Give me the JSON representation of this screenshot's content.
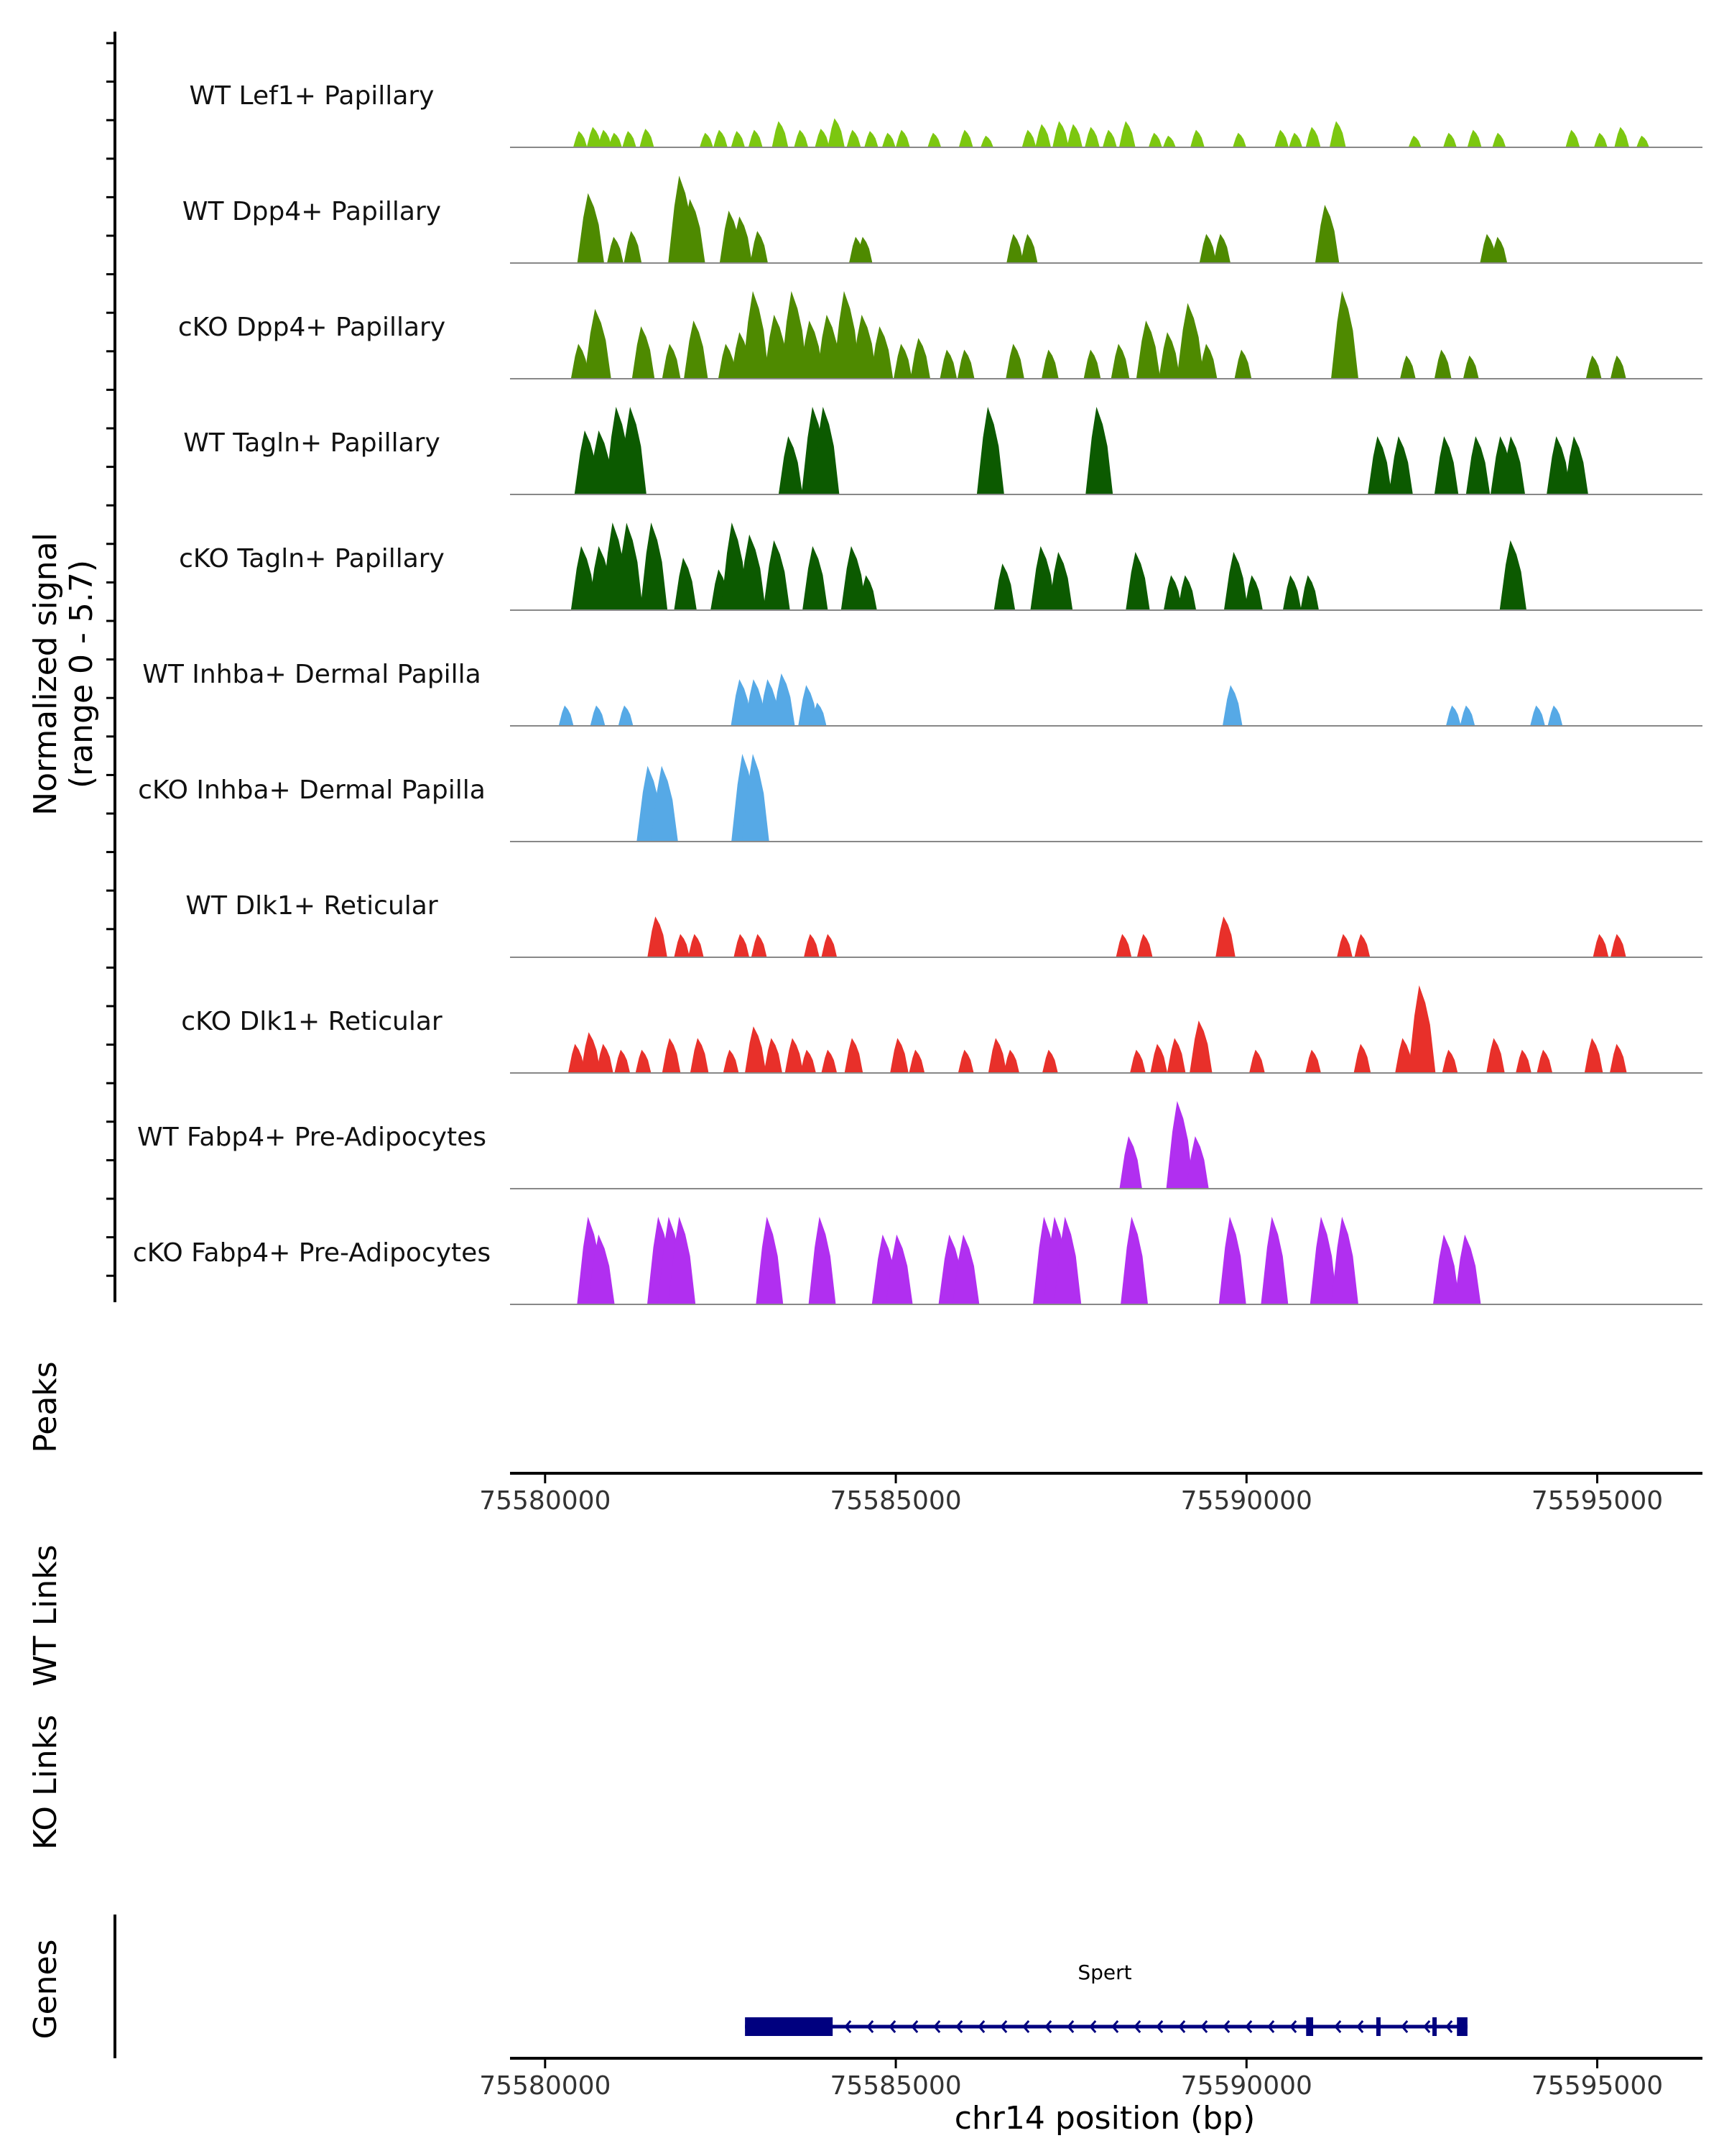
{
  "chart_data": {
    "type": "area",
    "chromosome": "chr14",
    "xlabel": "chr14 position (bp)",
    "xlim": [
      75579500,
      75596500
    ],
    "x_ticks": [
      75580000,
      75585000,
      75590000,
      75595000
    ],
    "x_tick_labels": [
      "75580000",
      "75585000",
      "75590000",
      "75595000"
    ],
    "coverage": {
      "ylabel_line1": "Normalized signal",
      "ylabel_line2": "(range 0 - 5.7)",
      "ylim": [
        0,
        5.7
      ],
      "tracks": [
        {
          "name": "WT Lef1+ Papillary",
          "color": "#7cc710",
          "peaks": [
            [
              75580500,
              0.28
            ],
            [
              75580700,
              0.35
            ],
            [
              75580850,
              0.3
            ],
            [
              75581000,
              0.25
            ],
            [
              75581200,
              0.28
            ],
            [
              75581450,
              0.32
            ],
            [
              75582300,
              0.25
            ],
            [
              75582500,
              0.3
            ],
            [
              75582750,
              0.28
            ],
            [
              75583000,
              0.3
            ],
            [
              75583350,
              0.45
            ],
            [
              75583650,
              0.3
            ],
            [
              75583950,
              0.32
            ],
            [
              75584150,
              0.5
            ],
            [
              75584400,
              0.3
            ],
            [
              75584650,
              0.28
            ],
            [
              75584900,
              0.25
            ],
            [
              75585100,
              0.3
            ],
            [
              75585550,
              0.25
            ],
            [
              75586000,
              0.3
            ],
            [
              75586300,
              0.2
            ],
            [
              75586900,
              0.3
            ],
            [
              75587100,
              0.4
            ],
            [
              75587350,
              0.45
            ],
            [
              75587550,
              0.4
            ],
            [
              75587800,
              0.35
            ],
            [
              75588050,
              0.3
            ],
            [
              75588300,
              0.45
            ],
            [
              75588700,
              0.25
            ],
            [
              75588900,
              0.2
            ],
            [
              75589300,
              0.3
            ],
            [
              75589900,
              0.25
            ],
            [
              75590500,
              0.3
            ],
            [
              75590700,
              0.25
            ],
            [
              75590950,
              0.35
            ],
            [
              75591300,
              0.45
            ],
            [
              75592400,
              0.2
            ],
            [
              75592900,
              0.25
            ],
            [
              75593250,
              0.3
            ],
            [
              75593600,
              0.25
            ],
            [
              75594650,
              0.3
            ],
            [
              75595050,
              0.25
            ],
            [
              75595350,
              0.35
            ],
            [
              75595650,
              0.2
            ]
          ]
        },
        {
          "name": "WT Dpp4+ Papillary",
          "color": "#4e8a00",
          "peaks": [
            [
              75580650,
              1.2
            ],
            [
              75581000,
              0.45
            ],
            [
              75581250,
              0.55
            ],
            [
              75581950,
              1.5
            ],
            [
              75582100,
              1.1
            ],
            [
              75582650,
              0.9
            ],
            [
              75582800,
              0.8
            ],
            [
              75583050,
              0.55
            ],
            [
              75584450,
              0.45
            ],
            [
              75584550,
              0.45
            ],
            [
              75586700,
              0.5
            ],
            [
              75586900,
              0.5
            ],
            [
              75589450,
              0.5
            ],
            [
              75589650,
              0.5
            ],
            [
              75591150,
              1.0
            ],
            [
              75593450,
              0.5
            ],
            [
              75593600,
              0.45
            ]
          ]
        },
        {
          "name": "cKO Dpp4+ Papillary",
          "color": "#4e8a00",
          "peaks": [
            [
              75580500,
              0.6
            ],
            [
              75580750,
              1.2
            ],
            [
              75581400,
              0.9
            ],
            [
              75581800,
              0.6
            ],
            [
              75582150,
              1.0
            ],
            [
              75582600,
              0.6
            ],
            [
              75582800,
              0.8
            ],
            [
              75583000,
              1.9
            ],
            [
              75583300,
              1.1
            ],
            [
              75583550,
              1.6
            ],
            [
              75583800,
              1.0
            ],
            [
              75584050,
              1.1
            ],
            [
              75584300,
              1.7
            ],
            [
              75584550,
              1.1
            ],
            [
              75584800,
              0.9
            ],
            [
              75585100,
              0.6
            ],
            [
              75585350,
              0.7
            ],
            [
              75585750,
              0.5
            ],
            [
              75586000,
              0.5
            ],
            [
              75586700,
              0.6
            ],
            [
              75587200,
              0.5
            ],
            [
              75587800,
              0.5
            ],
            [
              75588200,
              0.6
            ],
            [
              75588600,
              1.0
            ],
            [
              75588900,
              0.8
            ],
            [
              75589200,
              1.3
            ],
            [
              75589450,
              0.6
            ],
            [
              75589950,
              0.5
            ],
            [
              75591400,
              1.6
            ],
            [
              75592300,
              0.4
            ],
            [
              75592800,
              0.5
            ],
            [
              75593200,
              0.4
            ],
            [
              75594950,
              0.4
            ],
            [
              75595300,
              0.4
            ]
          ]
        },
        {
          "name": "WT Tagln+ Papillary",
          "color": "#0c5a00",
          "peaks": [
            [
              75580600,
              1.1
            ],
            [
              75580800,
              1.1
            ],
            [
              75581050,
              2.1
            ],
            [
              75581250,
              2.1
            ],
            [
              75583500,
              1.0
            ],
            [
              75583850,
              1.8
            ],
            [
              75584000,
              1.8
            ],
            [
              75586350,
              2.1
            ],
            [
              75587900,
              2.0
            ],
            [
              75591900,
              1.0
            ],
            [
              75592200,
              1.0
            ],
            [
              75592850,
              1.0
            ],
            [
              75593300,
              1.0
            ],
            [
              75593650,
              1.0
            ],
            [
              75593800,
              1.0
            ],
            [
              75594450,
              1.0
            ],
            [
              75594700,
              1.0
            ]
          ]
        },
        {
          "name": "cKO Tagln+ Papillary",
          "color": "#0c5a00",
          "peaks": [
            [
              75580550,
              1.1
            ],
            [
              75580800,
              1.1
            ],
            [
              75581000,
              2.6
            ],
            [
              75581200,
              1.5
            ],
            [
              75581550,
              2.4
            ],
            [
              75582000,
              0.9
            ],
            [
              75582500,
              0.7
            ],
            [
              75582700,
              1.6
            ],
            [
              75582950,
              1.3
            ],
            [
              75583300,
              1.2
            ],
            [
              75583850,
              1.1
            ],
            [
              75584400,
              1.1
            ],
            [
              75584600,
              0.6
            ],
            [
              75586550,
              0.8
            ],
            [
              75587100,
              1.1
            ],
            [
              75587350,
              1.0
            ],
            [
              75588450,
              1.0
            ],
            [
              75588950,
              0.6
            ],
            [
              75589150,
              0.6
            ],
            [
              75589850,
              1.0
            ],
            [
              75590100,
              0.6
            ],
            [
              75590650,
              0.6
            ],
            [
              75590900,
              0.6
            ],
            [
              75593800,
              1.2
            ]
          ]
        },
        {
          "name": "WT Inhba+ Dermal Papilla",
          "color": "#56a9e6",
          "peaks": [
            [
              75580300,
              0.35
            ],
            [
              75580750,
              0.35
            ],
            [
              75581150,
              0.35
            ],
            [
              75582800,
              0.8
            ],
            [
              75583000,
              0.8
            ],
            [
              75583200,
              0.8
            ],
            [
              75583400,
              0.9
            ],
            [
              75583750,
              0.7
            ],
            [
              75583900,
              0.4
            ],
            [
              75589800,
              0.7
            ],
            [
              75592950,
              0.35
            ],
            [
              75593150,
              0.35
            ],
            [
              75594150,
              0.35
            ],
            [
              75594400,
              0.35
            ]
          ]
        },
        {
          "name": "cKO Inhba+ Dermal Papilla",
          "color": "#56a9e6",
          "peaks": [
            [
              75581500,
              1.3
            ],
            [
              75581700,
              1.3
            ],
            [
              75582850,
              3.9
            ],
            [
              75583000,
              2.1
            ]
          ]
        },
        {
          "name": "WT Dlk1+ Reticular",
          "color": "#e8302a",
          "peaks": [
            [
              75581600,
              0.7
            ],
            [
              75581950,
              0.4
            ],
            [
              75582150,
              0.4
            ],
            [
              75582800,
              0.4
            ],
            [
              75583050,
              0.4
            ],
            [
              75583800,
              0.4
            ],
            [
              75584050,
              0.4
            ],
            [
              75588250,
              0.4
            ],
            [
              75588550,
              0.4
            ],
            [
              75589700,
              0.7
            ],
            [
              75591400,
              0.4
            ],
            [
              75591650,
              0.4
            ],
            [
              75595050,
              0.4
            ],
            [
              75595300,
              0.4
            ]
          ]
        },
        {
          "name": "cKO Dlk1+ Reticular",
          "color": "#e8302a",
          "peaks": [
            [
              75580450,
              0.5
            ],
            [
              75580650,
              0.7
            ],
            [
              75580850,
              0.5
            ],
            [
              75581100,
              0.4
            ],
            [
              75581400,
              0.4
            ],
            [
              75581800,
              0.6
            ],
            [
              75582200,
              0.6
            ],
            [
              75582650,
              0.4
            ],
            [
              75583000,
              0.8
            ],
            [
              75583250,
              0.6
            ],
            [
              75583550,
              0.6
            ],
            [
              75583750,
              0.4
            ],
            [
              75584050,
              0.4
            ],
            [
              75584400,
              0.6
            ],
            [
              75585050,
              0.6
            ],
            [
              75585300,
              0.4
            ],
            [
              75586000,
              0.4
            ],
            [
              75586450,
              0.6
            ],
            [
              75586650,
              0.4
            ],
            [
              75587200,
              0.4
            ],
            [
              75588450,
              0.4
            ],
            [
              75588750,
              0.5
            ],
            [
              75589000,
              0.6
            ],
            [
              75589350,
              0.9
            ],
            [
              75590150,
              0.4
            ],
            [
              75590950,
              0.4
            ],
            [
              75591650,
              0.5
            ],
            [
              75592250,
              0.6
            ],
            [
              75592500,
              1.6
            ],
            [
              75592900,
              0.4
            ],
            [
              75593550,
              0.6
            ],
            [
              75593950,
              0.4
            ],
            [
              75594250,
              0.4
            ],
            [
              75594950,
              0.6
            ],
            [
              75595300,
              0.5
            ]
          ]
        },
        {
          "name": "WT Fabp4+ Pre-Adipocytes",
          "color": "#b12ff0",
          "peaks": [
            [
              75588350,
              0.9
            ],
            [
              75589050,
              1.9
            ],
            [
              75589300,
              0.9
            ]
          ]
        },
        {
          "name": "cKO Fabp4+ Pre-Adipocytes",
          "color": "#b12ff0",
          "peaks": [
            [
              75580650,
              2.3
            ],
            [
              75580800,
              1.2
            ],
            [
              75581650,
              3.4
            ],
            [
              75581800,
              4.6
            ],
            [
              75581950,
              2.4
            ],
            [
              75583200,
              2.3
            ],
            [
              75583950,
              2.3
            ],
            [
              75584850,
              1.2
            ],
            [
              75585050,
              1.2
            ],
            [
              75585800,
              1.2
            ],
            [
              75586000,
              1.2
            ],
            [
              75587150,
              2.3
            ],
            [
              75587300,
              2.3
            ],
            [
              75587450,
              2.3
            ],
            [
              75588400,
              2.3
            ],
            [
              75589800,
              2.3
            ],
            [
              75590400,
              2.3
            ],
            [
              75591100,
              2.3
            ],
            [
              75591400,
              2.3
            ],
            [
              75592850,
              1.2
            ],
            [
              75593150,
              1.2
            ]
          ]
        }
      ]
    },
    "peaks_track": {
      "label": "Peaks"
    },
    "links_tracks": [
      {
        "label": "WT Links"
      },
      {
        "label": "KO Links"
      }
    ],
    "genes_track": {
      "label": "Genes",
      "color": "#00007f",
      "gene_name": "Spert",
      "strand": "-",
      "start": 75582850,
      "end": 75593150,
      "exons": [
        [
          75582850,
          75584100
        ],
        [
          75590850,
          75590950
        ],
        [
          75591850,
          75591900
        ],
        [
          75592650,
          75592700
        ],
        [
          75593000,
          75593150
        ]
      ]
    }
  }
}
